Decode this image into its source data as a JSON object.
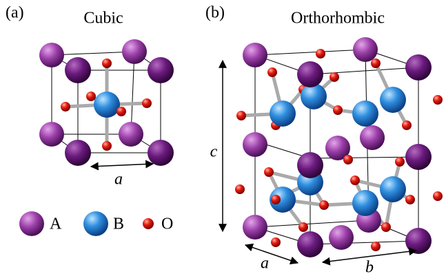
{
  "panels": [
    {
      "label": "(a)",
      "title": "Cubic",
      "axis_labels": [
        "a"
      ]
    },
    {
      "label": "(b)",
      "title": "Orthorhombic",
      "axis_labels": [
        "c",
        "a",
        "b"
      ]
    }
  ],
  "legend": [
    {
      "label": "A"
    },
    {
      "label": "B"
    },
    {
      "label": "O"
    }
  ]
}
